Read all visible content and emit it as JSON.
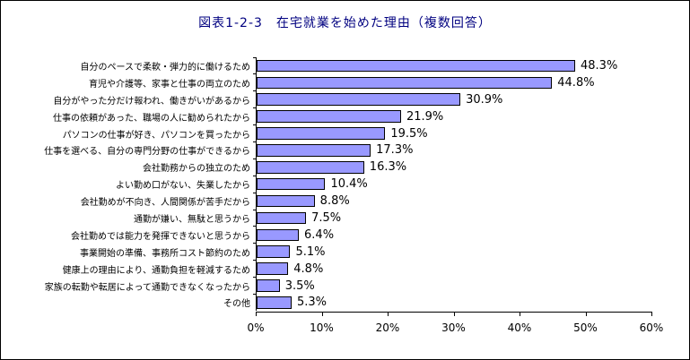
{
  "title": "図表1-2-3　在宅就業を始めた理由（複数回答）",
  "colors": {
    "bar_fill": "#9999FF",
    "bar_border": "#000000",
    "title_color": "#000080",
    "text_color": "#000000",
    "frame_border": "#000000",
    "background": "#FFFFFF"
  },
  "chart_data": {
    "type": "bar",
    "orientation": "horizontal",
    "title": "図表1-2-3　在宅就業を始めた理由（複数回答）",
    "xlabel": "",
    "ylabel": "",
    "xlim": [
      0,
      60
    ],
    "grid": false,
    "legend": false,
    "categories": [
      "自分のペースで柔軟・弾力的に働けるため",
      "育児や介護等、家事と仕事の両立のため",
      "自分がやった分だけ報われ、働きがいがあるから",
      "仕事の依頼があった、職場の人に勧められたから",
      "パソコンの仕事が好き、パソコンを買ったから",
      "仕事を選べる、自分の専門分野の仕事ができるから",
      "会社勤務からの独立のため",
      "よい勤め口がない、失業したから",
      "会社勤めが不向き、人間関係が苦手だから",
      "通勤が嫌い、無駄と思うから",
      "会社勤めでは能力を発揮できないと思うから",
      "事業開始の準備、事務所コスト節約のため",
      "健康上の理由により、通勤負担を軽減するため",
      "家族の転勤や転居によって通勤できなくなったから",
      "その他"
    ],
    "values": [
      48.3,
      44.8,
      30.9,
      21.9,
      19.5,
      17.3,
      16.3,
      10.4,
      8.8,
      7.5,
      6.4,
      5.1,
      4.8,
      3.5,
      5.3
    ],
    "value_labels": [
      "48.3%",
      "44.8%",
      "30.9%",
      "21.9%",
      "19.5%",
      "17.3%",
      "16.3%",
      "10.4%",
      "8.8%",
      "7.5%",
      "6.4%",
      "5.1%",
      "4.8%",
      "3.5%",
      "5.3%"
    ],
    "x_ticks": [
      "0%",
      "10%",
      "20%",
      "30%",
      "40%",
      "50%",
      "60%"
    ],
    "x_tick_values": [
      0,
      10,
      20,
      30,
      40,
      50,
      60
    ]
  }
}
